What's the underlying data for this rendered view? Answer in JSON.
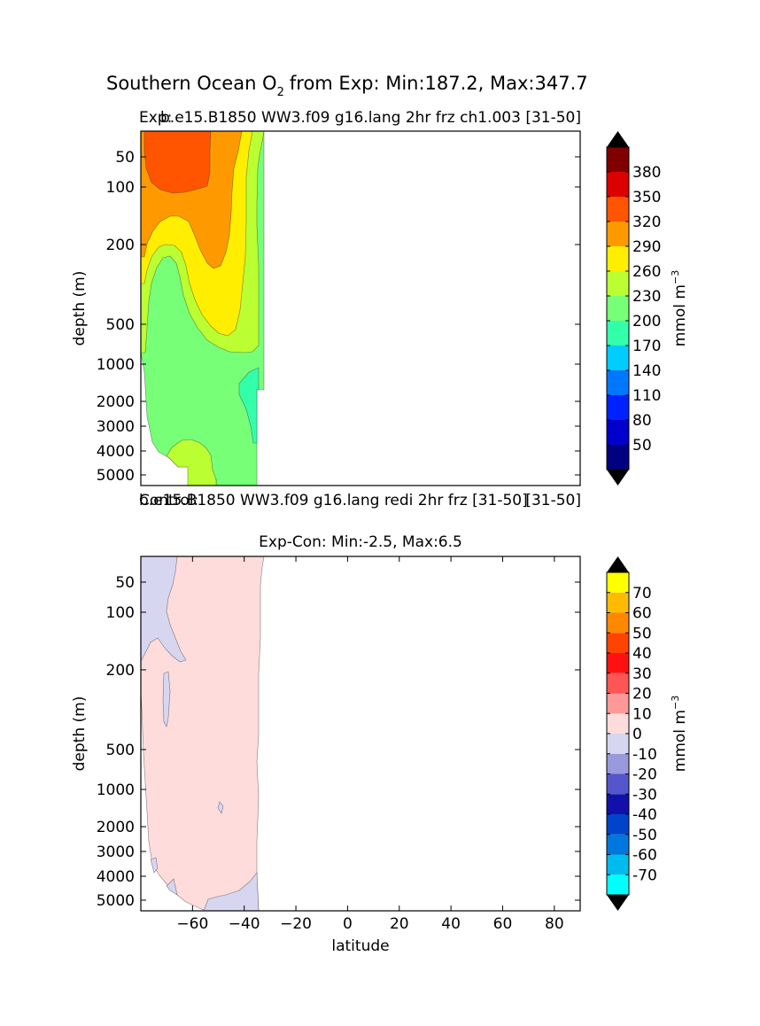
{
  "figure": {
    "title_main": "Southern Ocean O",
    "title_sub": "2",
    "title_rest": "from Exp: Min:187.2, Max:347.7"
  },
  "top": {
    "title_left": "Exp:",
    "title_left_overlap": "b.e15.B1850 WW3.f09 g16.lang 2hr frz ch1.003",
    "title_right": "[31-50]",
    "ylabel": "depth (m)"
  },
  "middle_label": {
    "left": "Control:",
    "left_overlap": "b.e15.B1850 WW3.f09 g16.lang redi 2hr frz [31-50]",
    "right": "[31-50]"
  },
  "bottom": {
    "title": "Exp-Con: Min:-2.5, Max:6.5",
    "ylabel": "depth (m)",
    "xlabel": "latitude"
  },
  "colorbar_top": {
    "label": "mmol m",
    "label_exp": "−3",
    "ticks": [
      "50",
      "80",
      "110",
      "140",
      "170",
      "200",
      "230",
      "260",
      "290",
      "320",
      "350",
      "380"
    ],
    "colors": [
      "#000080",
      "#0000cd",
      "#0022ff",
      "#0077ff",
      "#00ccff",
      "#33ffaa",
      "#77ff77",
      "#bbff33",
      "#ffee00",
      "#ff9900",
      "#ff5500",
      "#dd0000",
      "#800000"
    ]
  },
  "colorbar_bottom": {
    "label": "mmol m",
    "label_exp": "−3",
    "ticks": [
      "-70",
      "-60",
      "-50",
      "-40",
      "-30",
      "-20",
      "-10",
      "0",
      "10",
      "20",
      "30",
      "40",
      "50",
      "60",
      "70"
    ],
    "colors": [
      "#00ffff",
      "#00bbee",
      "#0077dd",
      "#0044cc",
      "#1111aa",
      "#5555cc",
      "#9999dd",
      "#d6d6f0",
      "#ffdcdc",
      "#ff9999",
      "#ff5555",
      "#ff1111",
      "#ff4400",
      "#ff8800",
      "#ffbb00",
      "#ffff00"
    ]
  },
  "chart_data": [
    {
      "type": "heatmap",
      "title": "Exp: b.e15.B1850 WW3.f09 g16.lang 2hr frz ch1.003 [31-50]",
      "ylabel": "depth (m)",
      "yticks": [
        "50",
        "100",
        "200",
        "500",
        "1000",
        "2000",
        "3000",
        "4000",
        "5000"
      ],
      "ytick_values": [
        50,
        100,
        200,
        500,
        1000,
        2000,
        3000,
        4000,
        5000
      ],
      "xlim": [
        -80,
        90
      ],
      "data_extent_lat": [
        -78,
        -33
      ],
      "units": "mmol m^-3",
      "min": 187.2,
      "max": 347.7,
      "regions": [
        {
          "band": "320-350",
          "depth_range": [
            10,
            140
          ],
          "lat_range": [
            -78,
            -53
          ]
        },
        {
          "band": "290-320",
          "depth_range": [
            10,
            260
          ],
          "lat_range": [
            -78,
            -48
          ]
        },
        {
          "band": "260-290",
          "depth_range": [
            10,
            500
          ],
          "lat_range": [
            -75,
            -39
          ]
        },
        {
          "band": "230-260",
          "depth_range": [
            10,
            800
          ],
          "lat_range": [
            -75,
            -33
          ]
        },
        {
          "band": "200-230",
          "depth_range": [
            300,
            5000
          ],
          "lat_range": [
            -76,
            -33
          ]
        },
        {
          "band": "170-200",
          "depth_range": [
            1500,
            4000
          ],
          "lat_range": [
            -41,
            -33
          ]
        },
        {
          "band": "230-260",
          "depth_range": [
            3800,
            5000
          ],
          "lat_range": [
            -70,
            -50
          ]
        }
      ]
    },
    {
      "type": "heatmap",
      "title": "Exp-Con: Min:-2.5, Max:6.5",
      "ylabel": "depth (m)",
      "xlabel": "latitude",
      "yticks": [
        "50",
        "100",
        "200",
        "500",
        "1000",
        "2000",
        "3000",
        "4000",
        "5000"
      ],
      "ytick_values": [
        50,
        100,
        200,
        500,
        1000,
        2000,
        3000,
        4000,
        5000
      ],
      "xticks": [
        "−60",
        "−40",
        "−20",
        "0",
        "20",
        "40",
        "60",
        "80"
      ],
      "xtick_values": [
        -60,
        -40,
        -20,
        0,
        20,
        40,
        60,
        80
      ],
      "xlim": [
        -80,
        90
      ],
      "data_extent_lat": [
        -78,
        -33
      ],
      "units": "mmol m^-3",
      "min": -2.5,
      "max": 6.5,
      "regions": [
        {
          "band": "0-10",
          "depth_range": [
            10,
            5000
          ],
          "lat_range": [
            -78,
            -33
          ]
        },
        {
          "band": "-10-0",
          "depth_range": [
            10,
            160
          ],
          "lat_range": [
            -78,
            -62
          ]
        },
        {
          "band": "-10-0",
          "depth_range": [
            4500,
            5000
          ],
          "lat_range": [
            -55,
            -38
          ]
        }
      ]
    }
  ]
}
